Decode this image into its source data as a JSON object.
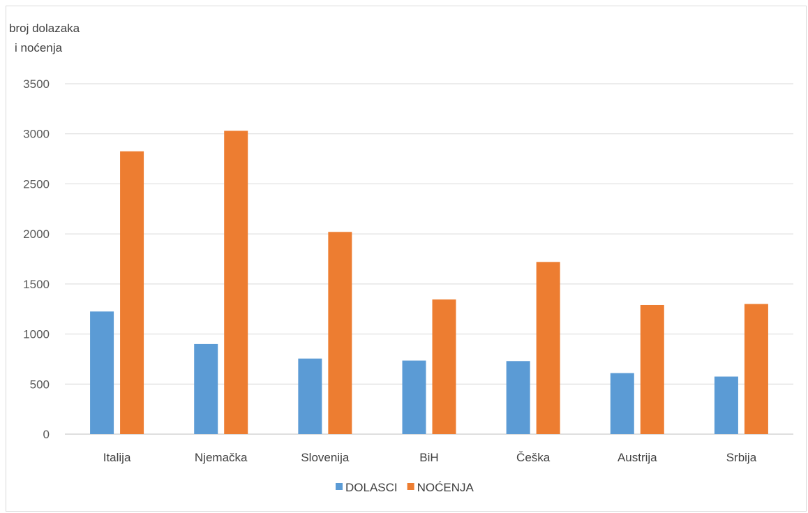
{
  "chart_data": {
    "type": "bar",
    "title": "",
    "ylabel_lines": [
      "broj dolazaka",
      "i noćenja"
    ],
    "xlabel": "",
    "categories": [
      "Italija",
      "Njemačka",
      "Slovenija",
      "BiH",
      "Češka",
      "Austrija",
      "Srbija"
    ],
    "series": [
      {
        "name": "DOLASCI",
        "color": "#5b9bd5",
        "values": [
          1225,
          900,
          755,
          735,
          730,
          610,
          575
        ]
      },
      {
        "name": "NOĆENJA",
        "color": "#ed7d31",
        "values": [
          2825,
          3030,
          2020,
          1345,
          1720,
          1290,
          1300
        ]
      }
    ],
    "ylim": [
      0,
      3500
    ],
    "yticks": [
      0,
      500,
      1000,
      1500,
      2000,
      2500,
      3000,
      3500
    ],
    "grid": true,
    "legend_position": "bottom"
  }
}
